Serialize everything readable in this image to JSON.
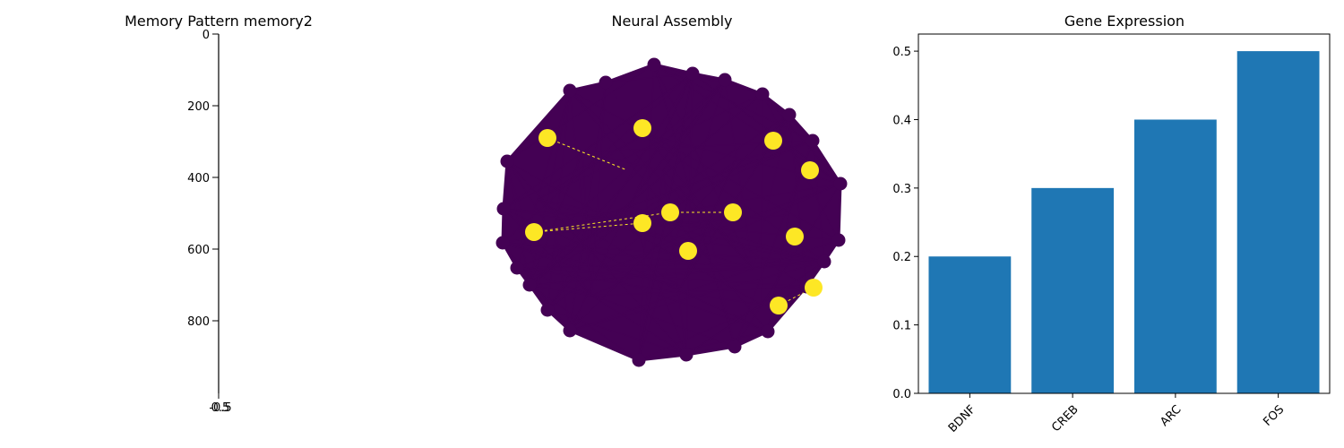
{
  "chart_data": [
    {
      "type": "heatmap",
      "title": "Memory Pattern memory2",
      "y_ticks": [
        "0",
        "200",
        "400",
        "600",
        "800"
      ],
      "x_ticks": [
        "-0.5",
        "0.5"
      ],
      "ylim": [
        1000,
        0
      ],
      "xlim": [
        -0.5,
        0.5
      ]
    },
    {
      "type": "network",
      "title": "Neural Assembly",
      "node_colors": {
        "inactive": "#440154",
        "active": "#fde725"
      },
      "edge_color": "#440154",
      "active_edge_color": "#fde725"
    },
    {
      "type": "bar",
      "title": "Gene Expression",
      "categories": [
        "BDNF",
        "CREB",
        "ARC",
        "FOS"
      ],
      "values": [
        0.2,
        0.3,
        0.4,
        0.5
      ],
      "ylim": [
        0,
        0.525
      ],
      "y_ticks": [
        "0.0",
        "0.1",
        "0.2",
        "0.3",
        "0.4",
        "0.5"
      ],
      "bar_color": "#1f77b4"
    }
  ]
}
